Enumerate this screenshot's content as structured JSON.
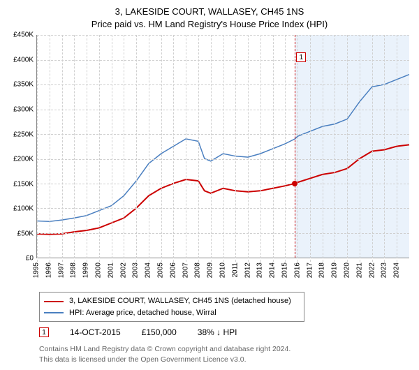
{
  "title_line1": "3, LAKESIDE COURT, WALLASEY, CH45 1NS",
  "title_line2": "Price paid vs. HM Land Registry's House Price Index (HPI)",
  "chart": {
    "type": "line",
    "ylim": [
      0,
      450000
    ],
    "ytick_step": 50000,
    "y_ticks": [
      "£0",
      "£50K",
      "£100K",
      "£150K",
      "£200K",
      "£250K",
      "£300K",
      "£350K",
      "£400K",
      "£450K"
    ],
    "x_years": [
      1995,
      1996,
      1997,
      1998,
      1999,
      2000,
      2001,
      2002,
      2003,
      2004,
      2005,
      2006,
      2007,
      2008,
      2009,
      2010,
      2011,
      2012,
      2013,
      2014,
      2015,
      2016,
      2017,
      2018,
      2019,
      2020,
      2021,
      2022,
      2023,
      2024
    ],
    "x_range": [
      1995,
      2025
    ],
    "grid_color": "#d0d0d0",
    "shaded_from_year": 2015.79,
    "shade_color": "#eaf2fb",
    "vline_year": 2015.79,
    "vline_color": "#cc0000",
    "marker_label": "1",
    "marker_pos_year": 2016.3,
    "marker_pos_value": 405000,
    "series": [
      {
        "name": "price_paid",
        "color": "#cc0000",
        "width": 2,
        "data": [
          [
            1995,
            48000
          ],
          [
            1996,
            47000
          ],
          [
            1997,
            48000
          ],
          [
            1998,
            52000
          ],
          [
            1999,
            55000
          ],
          [
            2000,
            60000
          ],
          [
            2001,
            70000
          ],
          [
            2002,
            80000
          ],
          [
            2003,
            100000
          ],
          [
            2004,
            125000
          ],
          [
            2005,
            140000
          ],
          [
            2006,
            150000
          ],
          [
            2007,
            158000
          ],
          [
            2008,
            155000
          ],
          [
            2008.5,
            135000
          ],
          [
            2009,
            130000
          ],
          [
            2010,
            140000
          ],
          [
            2011,
            135000
          ],
          [
            2012,
            133000
          ],
          [
            2013,
            135000
          ],
          [
            2014,
            140000
          ],
          [
            2015,
            145000
          ],
          [
            2015.79,
            150000
          ],
          [
            2016,
            152000
          ],
          [
            2017,
            160000
          ],
          [
            2018,
            168000
          ],
          [
            2019,
            172000
          ],
          [
            2020,
            180000
          ],
          [
            2021,
            200000
          ],
          [
            2022,
            215000
          ],
          [
            2023,
            218000
          ],
          [
            2024,
            225000
          ],
          [
            2025,
            228000
          ]
        ]
      },
      {
        "name": "hpi",
        "color": "#4a7fc0",
        "width": 1.5,
        "data": [
          [
            1995,
            74000
          ],
          [
            1996,
            73000
          ],
          [
            1997,
            76000
          ],
          [
            1998,
            80000
          ],
          [
            1999,
            85000
          ],
          [
            2000,
            95000
          ],
          [
            2001,
            105000
          ],
          [
            2002,
            125000
          ],
          [
            2003,
            155000
          ],
          [
            2004,
            190000
          ],
          [
            2005,
            210000
          ],
          [
            2006,
            225000
          ],
          [
            2007,
            240000
          ],
          [
            2008,
            235000
          ],
          [
            2008.5,
            200000
          ],
          [
            2009,
            195000
          ],
          [
            2010,
            210000
          ],
          [
            2011,
            205000
          ],
          [
            2012,
            203000
          ],
          [
            2013,
            210000
          ],
          [
            2014,
            220000
          ],
          [
            2015,
            230000
          ],
          [
            2015.79,
            240000
          ],
          [
            2016,
            245000
          ],
          [
            2017,
            255000
          ],
          [
            2018,
            265000
          ],
          [
            2019,
            270000
          ],
          [
            2020,
            280000
          ],
          [
            2021,
            315000
          ],
          [
            2022,
            345000
          ],
          [
            2023,
            350000
          ],
          [
            2024,
            360000
          ],
          [
            2025,
            370000
          ]
        ]
      }
    ],
    "data_point": {
      "year": 2015.79,
      "value": 150000,
      "color": "#cc0000"
    }
  },
  "legend": {
    "row1": {
      "color": "#cc0000",
      "label": "3, LAKESIDE COURT, WALLASEY, CH45 1NS (detached house)"
    },
    "row2": {
      "color": "#4a7fc0",
      "label": "HPI: Average price, detached house, Wirral"
    }
  },
  "annotation": {
    "marker": "1",
    "date": "14-OCT-2015",
    "price": "£150,000",
    "pct": "38% ↓ HPI"
  },
  "footer_line1": "Contains HM Land Registry data © Crown copyright and database right 2024.",
  "footer_line2": "This data is licensed under the Open Government Licence v3.0."
}
